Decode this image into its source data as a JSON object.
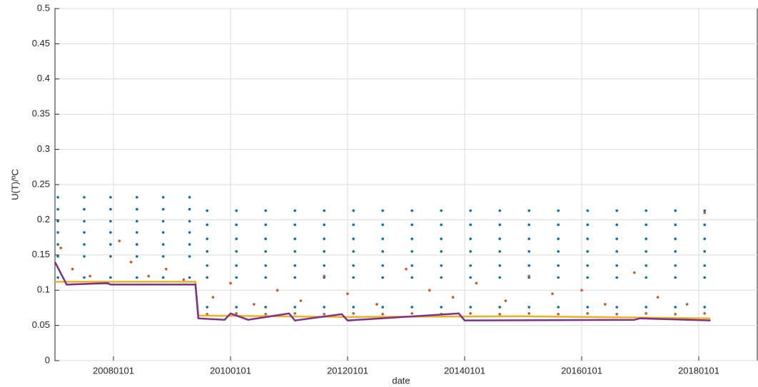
{
  "chart_data": {
    "type": "scatter",
    "xlabel": "date",
    "ylabel": "U(T)/ºC",
    "xlim": [
      2007,
      2019
    ],
    "ylim": [
      0,
      0.5
    ],
    "xticks": [
      {
        "value": 2008,
        "label": "20080101"
      },
      {
        "value": 2010,
        "label": "20100101"
      },
      {
        "value": 2012,
        "label": "20120101"
      },
      {
        "value": 2014,
        "label": "20140101"
      },
      {
        "value": 2016,
        "label": "20160101"
      },
      {
        "value": 2018,
        "label": "20180101"
      }
    ],
    "yticks": [
      0,
      0.05,
      0.1,
      0.15,
      0.2,
      0.25,
      0.3,
      0.35,
      0.4,
      0.45,
      0.5
    ],
    "grid": true,
    "series": [
      {
        "type": "scatter",
        "color": "#0072bd",
        "x": [
          2007.05,
          2007.5,
          2007.95,
          2008.4,
          2008.85,
          2009.3
        ],
        "values": [
          0.232,
          0.232,
          0.232,
          0.232,
          0.232,
          0.232
        ]
      },
      {
        "type": "scatter",
        "color": "#0072bd",
        "x": [
          2007.05,
          2007.5,
          2007.95,
          2008.4,
          2008.85,
          2009.3
        ],
        "values": [
          0.215,
          0.215,
          0.215,
          0.215,
          0.215,
          0.215
        ]
      },
      {
        "type": "scatter",
        "color": "#0072bd",
        "x": [
          2007.05,
          2007.5,
          2007.95,
          2008.4,
          2008.85,
          2009.3
        ],
        "values": [
          0.198,
          0.198,
          0.198,
          0.198,
          0.198,
          0.198
        ]
      },
      {
        "type": "scatter",
        "color": "#0072bd",
        "x": [
          2007.05,
          2007.5,
          2007.95,
          2008.4,
          2008.85,
          2009.3
        ],
        "values": [
          0.182,
          0.182,
          0.182,
          0.182,
          0.182,
          0.182
        ]
      },
      {
        "type": "scatter",
        "color": "#0072bd",
        "x": [
          2007.05,
          2007.5,
          2007.95,
          2008.4,
          2008.85,
          2009.3
        ],
        "values": [
          0.165,
          0.165,
          0.165,
          0.165,
          0.165,
          0.165
        ]
      },
      {
        "type": "scatter",
        "color": "#0072bd",
        "x": [
          2007.05,
          2007.5,
          2007.95,
          2008.4,
          2008.85,
          2009.3
        ],
        "values": [
          0.148,
          0.148,
          0.148,
          0.148,
          0.148,
          0.148
        ]
      },
      {
        "type": "scatter",
        "color": "#0072bd",
        "x": [
          2007.05,
          2007.5,
          2007.95,
          2008.4,
          2008.85,
          2009.3
        ],
        "values": [
          0.118,
          0.118,
          0.118,
          0.118,
          0.118,
          0.118
        ]
      },
      {
        "type": "scatter",
        "color": "#0072bd",
        "x": [
          2009.6,
          2010.1,
          2010.6,
          2011.1,
          2011.6,
          2012.1,
          2012.6,
          2013.1,
          2013.6,
          2014.1,
          2014.6,
          2015.1,
          2015.6,
          2016.1,
          2016.6,
          2017.1,
          2017.6,
          2018.1
        ],
        "values": [
          0.213,
          0.213,
          0.213,
          0.213,
          0.213,
          0.213,
          0.213,
          0.213,
          0.213,
          0.213,
          0.213,
          0.213,
          0.213,
          0.213,
          0.213,
          0.213,
          0.213,
          0.213
        ]
      },
      {
        "type": "scatter",
        "color": "#0072bd",
        "x": [
          2009.6,
          2010.1,
          2010.6,
          2011.1,
          2011.6,
          2012.1,
          2012.6,
          2013.1,
          2013.6,
          2014.1,
          2014.6,
          2015.1,
          2015.6,
          2016.1,
          2016.6,
          2017.1,
          2017.6,
          2018.1
        ],
        "values": [
          0.193,
          0.193,
          0.193,
          0.193,
          0.193,
          0.193,
          0.193,
          0.193,
          0.193,
          0.193,
          0.193,
          0.193,
          0.193,
          0.193,
          0.193,
          0.193,
          0.193,
          0.193
        ]
      },
      {
        "type": "scatter",
        "color": "#0072bd",
        "x": [
          2009.6,
          2010.1,
          2010.6,
          2011.1,
          2011.6,
          2012.1,
          2012.6,
          2013.1,
          2013.6,
          2014.1,
          2014.6,
          2015.1,
          2015.6,
          2016.1,
          2016.6,
          2017.1,
          2017.6,
          2018.1
        ],
        "values": [
          0.173,
          0.173,
          0.173,
          0.173,
          0.173,
          0.173,
          0.173,
          0.173,
          0.173,
          0.173,
          0.173,
          0.173,
          0.173,
          0.173,
          0.173,
          0.173,
          0.173,
          0.173
        ]
      },
      {
        "type": "scatter",
        "color": "#0072bd",
        "x": [
          2009.6,
          2010.1,
          2010.6,
          2011.1,
          2011.6,
          2012.1,
          2012.6,
          2013.1,
          2013.6,
          2014.1,
          2014.6,
          2015.1,
          2015.6,
          2016.1,
          2016.6,
          2017.1,
          2017.6,
          2018.1
        ],
        "values": [
          0.155,
          0.155,
          0.155,
          0.155,
          0.155,
          0.155,
          0.155,
          0.155,
          0.155,
          0.155,
          0.155,
          0.155,
          0.155,
          0.155,
          0.155,
          0.155,
          0.155,
          0.155
        ]
      },
      {
        "type": "scatter",
        "color": "#0072bd",
        "x": [
          2009.6,
          2010.1,
          2010.6,
          2011.1,
          2011.6,
          2012.1,
          2012.6,
          2013.1,
          2013.6,
          2014.1,
          2014.6,
          2015.1,
          2015.6,
          2016.1,
          2016.6,
          2017.1,
          2017.6,
          2018.1
        ],
        "values": [
          0.135,
          0.135,
          0.135,
          0.135,
          0.135,
          0.135,
          0.135,
          0.135,
          0.135,
          0.135,
          0.135,
          0.135,
          0.135,
          0.135,
          0.135,
          0.135,
          0.135,
          0.135
        ]
      },
      {
        "type": "scatter",
        "color": "#0072bd",
        "x": [
          2009.6,
          2010.1,
          2010.6,
          2011.1,
          2011.6,
          2012.1,
          2012.6,
          2013.1,
          2013.6,
          2014.1,
          2014.6,
          2015.1,
          2015.6,
          2016.1,
          2016.6,
          2017.1,
          2017.6,
          2018.1
        ],
        "values": [
          0.118,
          0.118,
          0.118,
          0.118,
          0.118,
          0.118,
          0.118,
          0.118,
          0.118,
          0.118,
          0.118,
          0.118,
          0.118,
          0.118,
          0.118,
          0.118,
          0.118,
          0.118
        ]
      },
      {
        "type": "scatter",
        "color": "#0072bd",
        "x": [
          2009.6,
          2010.1,
          2010.6,
          2011.1,
          2011.6,
          2012.1,
          2012.6,
          2013.1,
          2013.6,
          2014.1,
          2014.6,
          2015.1,
          2015.6,
          2016.1,
          2016.6,
          2017.1,
          2017.6,
          2018.1
        ],
        "values": [
          0.076,
          0.076,
          0.076,
          0.076,
          0.076,
          0.076,
          0.076,
          0.076,
          0.076,
          0.076,
          0.076,
          0.076,
          0.076,
          0.076,
          0.076,
          0.076,
          0.076,
          0.076
        ]
      },
      {
        "type": "scatter",
        "color": "#d95319",
        "x": [
          2007.1,
          2007.3,
          2007.6,
          2007.9,
          2008.1,
          2008.3,
          2008.6,
          2008.9,
          2009.2,
          2009.7,
          2010.0,
          2010.4,
          2010.8,
          2011.2,
          2011.6,
          2012.0,
          2012.5,
          2013.0,
          2013.4,
          2013.8,
          2014.2,
          2014.7,
          2015.1,
          2015.5,
          2016.0,
          2016.4,
          2016.9,
          2017.3,
          2017.8,
          2018.1
        ],
        "values": [
          0.16,
          0.13,
          0.12,
          0.11,
          0.17,
          0.14,
          0.12,
          0.13,
          0.115,
          0.09,
          0.11,
          0.08,
          0.1,
          0.085,
          0.12,
          0.095,
          0.08,
          0.13,
          0.1,
          0.09,
          0.11,
          0.085,
          0.12,
          0.095,
          0.1,
          0.08,
          0.125,
          0.09,
          0.08,
          0.21
        ]
      },
      {
        "type": "scatter",
        "color": "#d95319",
        "x": [
          2009.6,
          2010.1,
          2010.6,
          2011.1,
          2011.6,
          2012.1,
          2012.6,
          2013.1,
          2013.6,
          2014.1,
          2014.6,
          2015.1,
          2015.6,
          2016.1,
          2016.6,
          2017.1,
          2017.6,
          2018.1
        ],
        "values": [
          0.066,
          0.067,
          0.066,
          0.067,
          0.066,
          0.067,
          0.066,
          0.067,
          0.066,
          0.067,
          0.066,
          0.067,
          0.066,
          0.067,
          0.066,
          0.067,
          0.066,
          0.067
        ]
      },
      {
        "type": "line",
        "color": "#edb120",
        "x": [
          2007.0,
          2009.4,
          2009.45,
          2012.0,
          2015.0,
          2018.2
        ],
        "values": [
          0.112,
          0.112,
          0.064,
          0.062,
          0.063,
          0.06
        ]
      },
      {
        "type": "line",
        "color": "#7e2f8e",
        "x": [
          2007.0,
          2007.2,
          2007.9,
          2007.95,
          2009.4,
          2009.45,
          2009.9,
          2010.0,
          2010.3,
          2011.0,
          2011.1,
          2011.9,
          2012.0,
          2013.9,
          2014.0,
          2016.9,
          2017.0,
          2018.2
        ],
        "values": [
          0.14,
          0.108,
          0.11,
          0.108,
          0.108,
          0.06,
          0.058,
          0.067,
          0.058,
          0.067,
          0.057,
          0.066,
          0.057,
          0.067,
          0.057,
          0.058,
          0.06,
          0.057
        ]
      }
    ]
  }
}
